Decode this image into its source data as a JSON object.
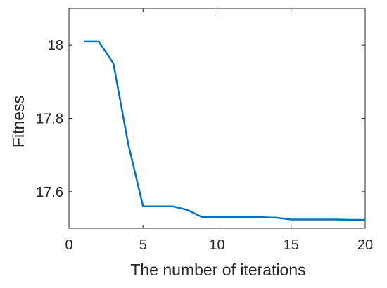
{
  "chart_data": {
    "type": "line",
    "title": "",
    "xlabel": "The number of iterations",
    "ylabel": "Fitness",
    "xlim": [
      0,
      20
    ],
    "ylim": [
      17.5,
      18.1
    ],
    "xticks": [
      0,
      5,
      10,
      15,
      20
    ],
    "xtick_labels": [
      "0",
      "5",
      "10",
      "15",
      "20"
    ],
    "yticks": [
      17.6,
      17.8,
      18
    ],
    "ytick_labels": [
      "17.6",
      "17.8",
      "18"
    ],
    "grid": false,
    "legend": "none",
    "series": [
      {
        "color": "#0072BD",
        "x": [
          1,
          2,
          3,
          4,
          5,
          6,
          7,
          8,
          9,
          10,
          11,
          12,
          13,
          14,
          15,
          16,
          17,
          18,
          19,
          20
        ],
        "y": [
          18.01,
          18.01,
          17.95,
          17.73,
          17.56,
          17.56,
          17.56,
          17.55,
          17.53,
          17.53,
          17.53,
          17.53,
          17.53,
          17.529,
          17.524,
          17.524,
          17.524,
          17.524,
          17.523,
          17.523
        ]
      }
    ]
  }
}
